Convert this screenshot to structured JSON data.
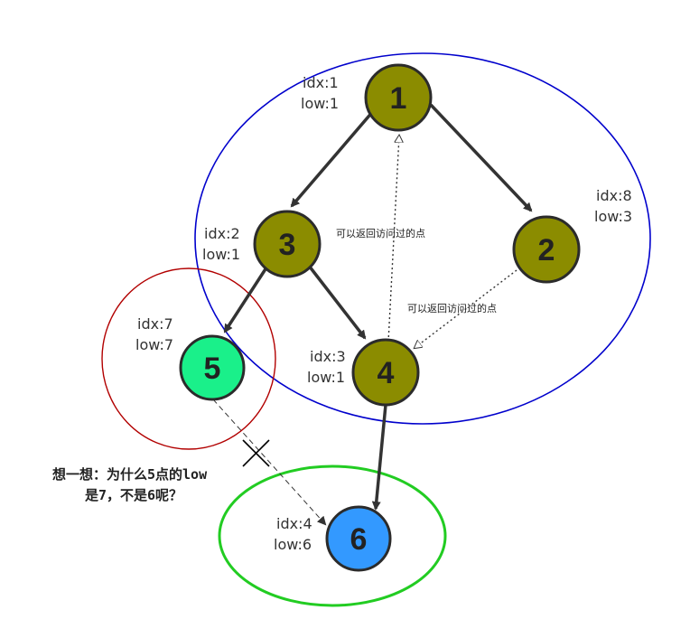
{
  "colors": {
    "node_olive": "#8b8c00",
    "node_green": "#1af08a",
    "node_blue": "#3399ff",
    "node_border": "#2b2b2b",
    "ring_blue": "#0000cc",
    "ring_red": "#b20000",
    "ring_green": "#22cc22",
    "edge": "#333333"
  },
  "nodes": [
    {
      "id": "1",
      "label": "1",
      "idx_text": "idx:1",
      "low_text": "low:1",
      "fill": "olive"
    },
    {
      "id": "3",
      "label": "3",
      "idx_text": "idx:2",
      "low_text": "low:1",
      "fill": "olive"
    },
    {
      "id": "2",
      "label": "2",
      "idx_text": "idx:8",
      "low_text": "low:3",
      "fill": "olive"
    },
    {
      "id": "5",
      "label": "5",
      "idx_text": "idx:7",
      "low_text": "low:7",
      "fill": "green"
    },
    {
      "id": "4",
      "label": "4",
      "idx_text": "idx:3",
      "low_text": "low:1",
      "fill": "olive"
    },
    {
      "id": "6",
      "label": "6",
      "idx_text": "idx:4",
      "low_text": "low:6",
      "fill": "blue"
    }
  ],
  "edges": [
    {
      "from": "1",
      "to": "3",
      "style": "solid"
    },
    {
      "from": "1",
      "to": "2",
      "style": "solid"
    },
    {
      "from": "3",
      "to": "5",
      "style": "solid"
    },
    {
      "from": "3",
      "to": "4",
      "style": "solid"
    },
    {
      "from": "4",
      "to": "6",
      "style": "solid"
    },
    {
      "from": "4",
      "to": "1",
      "style": "dotted"
    },
    {
      "from": "2",
      "to": "4",
      "style": "dotted"
    },
    {
      "from": "5",
      "to": "6",
      "style": "dashed",
      "crossed": true
    }
  ],
  "annotations": {
    "back_edge_note_1": "可以返回访问过的点",
    "back_edge_note_2": "可以返回访问过的点",
    "question_line_1": "想一想：为什么5点的low",
    "question_line_2": "是7，不是6呢？"
  }
}
